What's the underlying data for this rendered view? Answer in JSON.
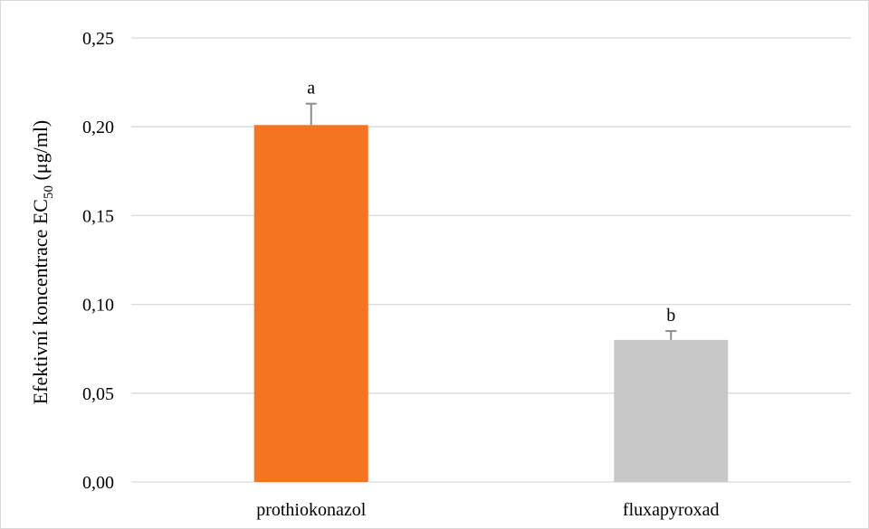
{
  "chart_data": {
    "type": "bar",
    "categories": [
      "prothiokonazol",
      "fluxapyroxad"
    ],
    "values": [
      0.201,
      0.08
    ],
    "error_bars": [
      0.012,
      0.005
    ],
    "significance_letters": [
      "a",
      "b"
    ],
    "colors": [
      "#f47521",
      "#c8c8c8"
    ],
    "title": "",
    "xlabel": "",
    "ylabel": {
      "prefix": "Efektivní koncentrace EC",
      "subscript": "50",
      "suffix": " (μg/ml)"
    },
    "ylim": [
      0,
      0.25
    ],
    "yticks": [
      "0,00",
      "0,05",
      "0,10",
      "0,15",
      "0,20",
      "0,25"
    ],
    "grid": true,
    "legend": "none"
  }
}
